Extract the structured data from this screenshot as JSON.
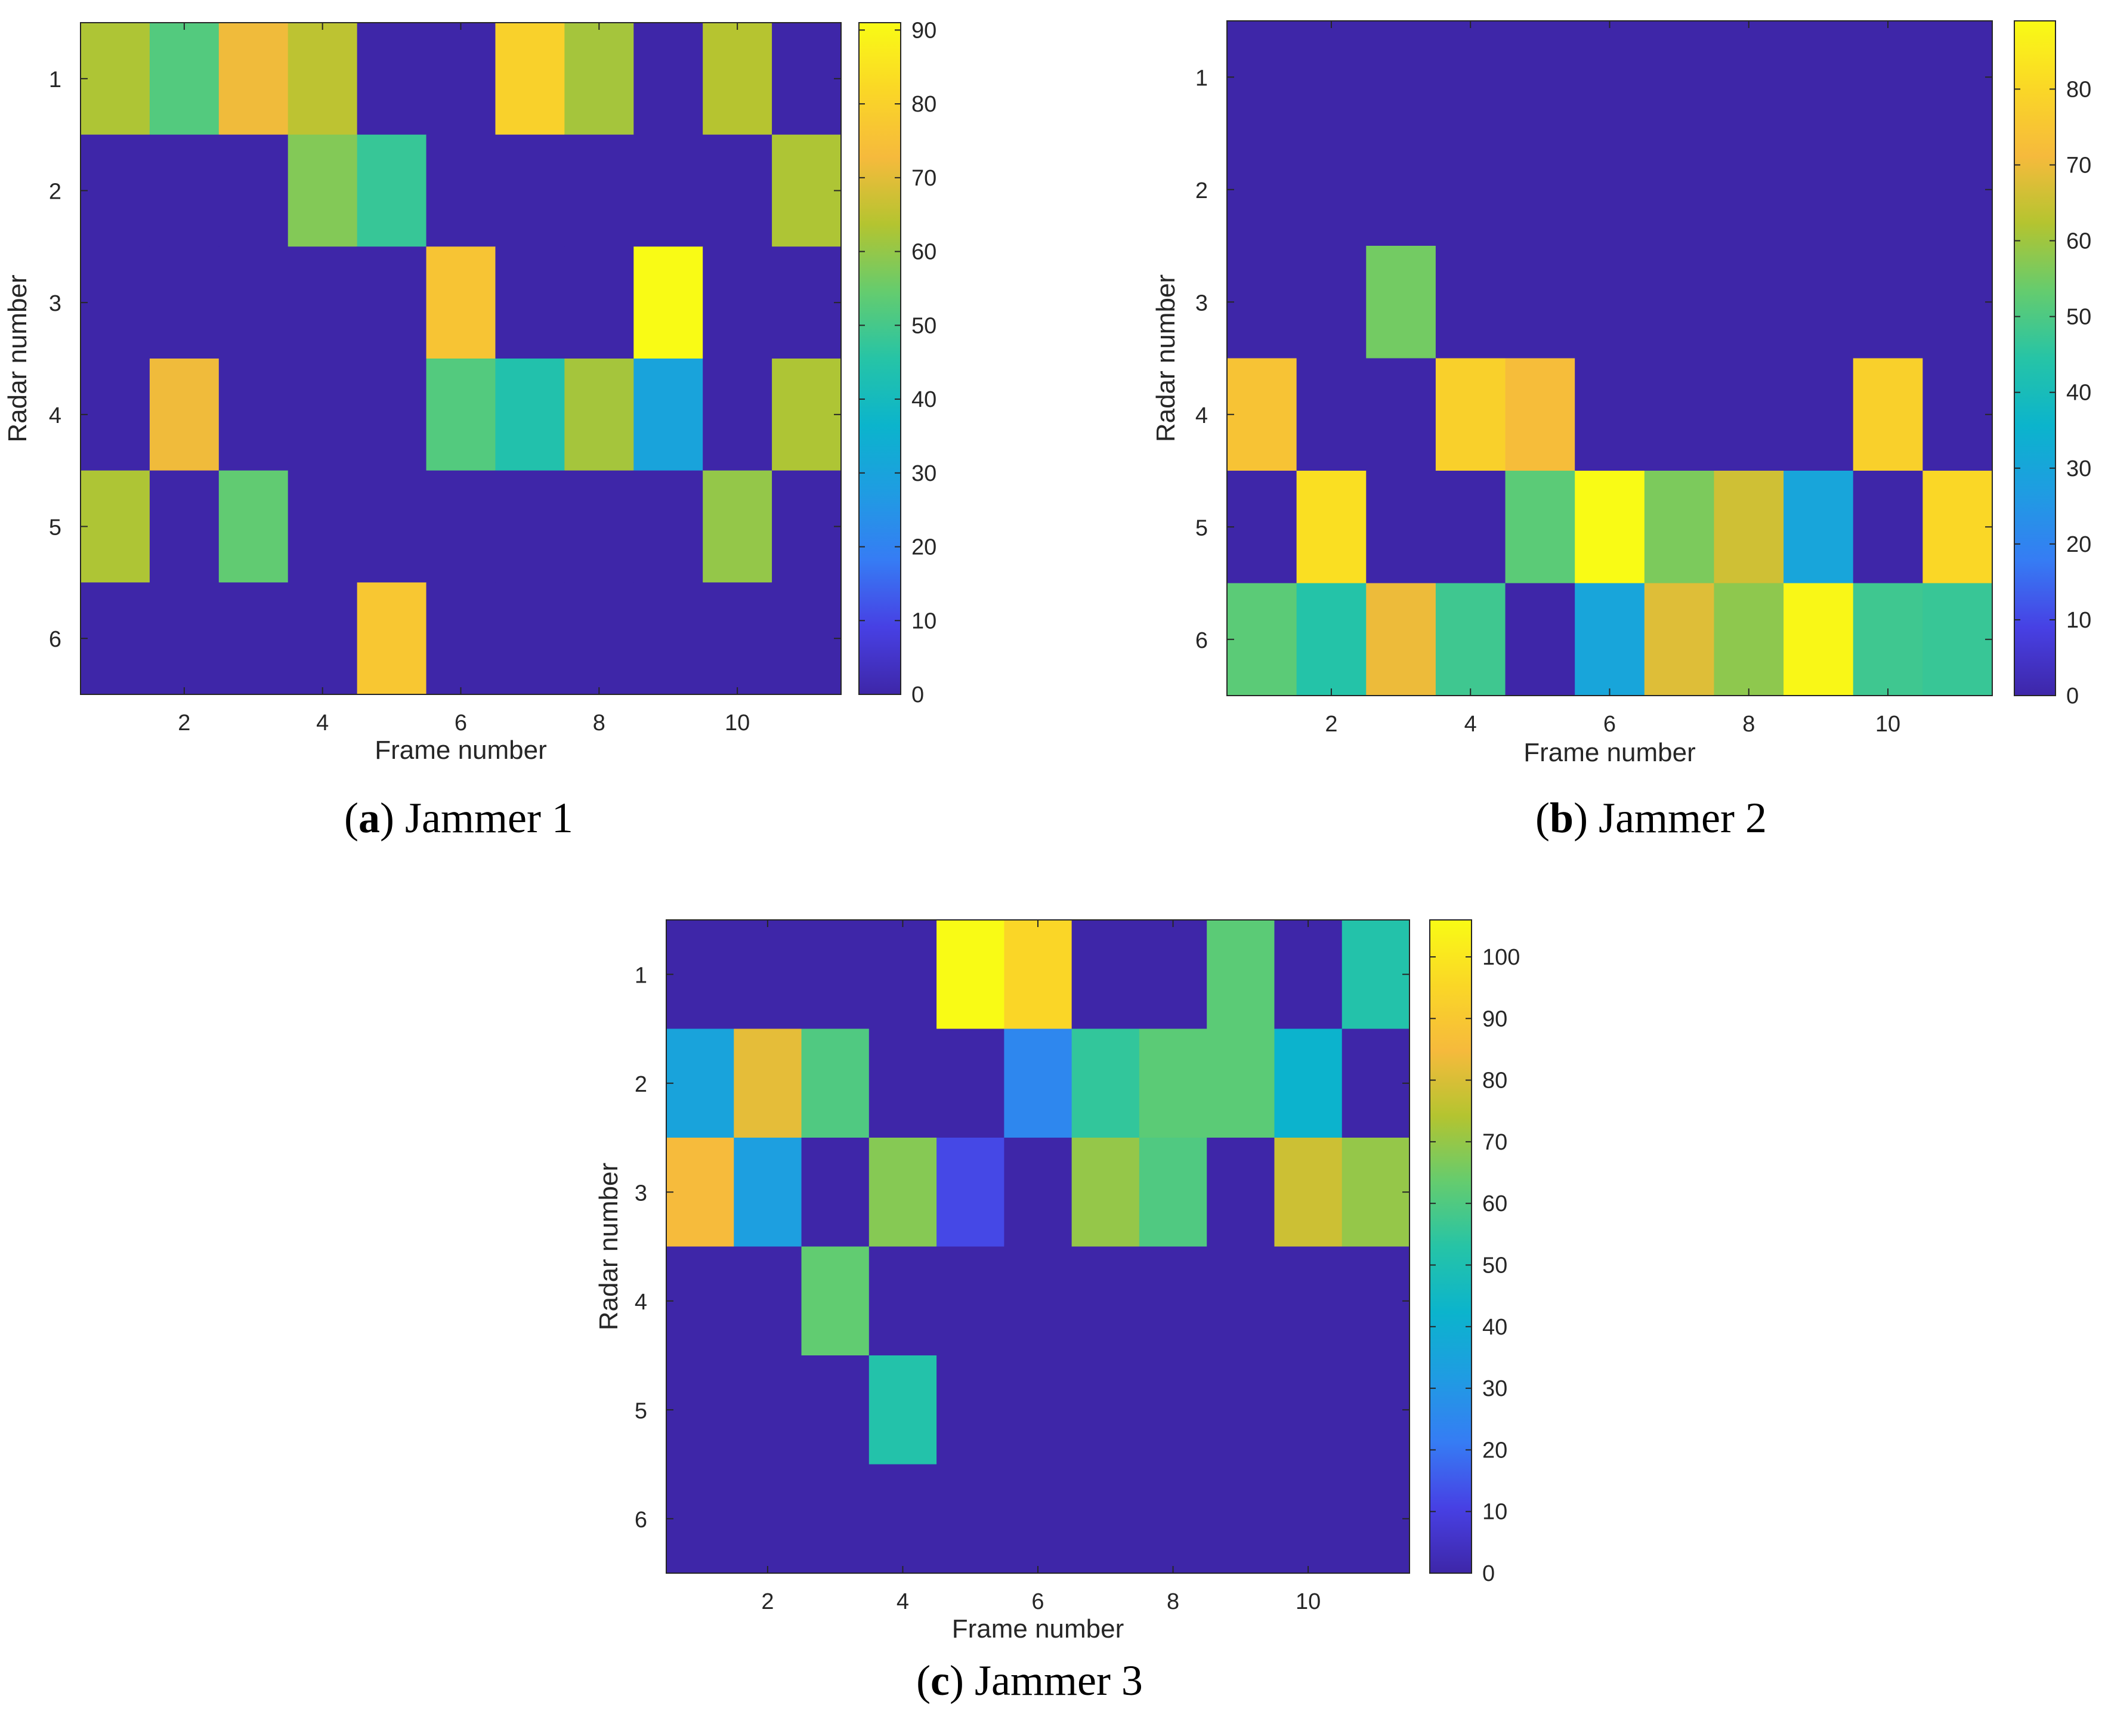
{
  "chart_data": [
    {
      "type": "heatmap",
      "panel_letter": "a",
      "caption": "Jammer 1",
      "xlabel": "Frame number",
      "ylabel": "Radar number",
      "x_ticks": [
        2,
        4,
        6,
        8,
        10
      ],
      "y_ticks": [
        1,
        2,
        3,
        4,
        5,
        6
      ],
      "xlim": [
        0.5,
        11.5
      ],
      "ylim": [
        0.5,
        6.5
      ],
      "colorbar": {
        "min": 0,
        "max": 91,
        "ticks": [
          0,
          10,
          20,
          30,
          40,
          50,
          60,
          70,
          80,
          90
        ]
      },
      "values": [
        [
          63,
          52,
          72,
          65,
          0,
          0,
          80,
          62,
          0,
          64,
          0
        ],
        [
          0,
          0,
          0,
          58,
          48,
          0,
          0,
          0,
          0,
          0,
          63
        ],
        [
          0,
          0,
          0,
          0,
          0,
          76,
          0,
          0,
          91,
          0,
          0
        ],
        [
          0,
          72,
          0,
          0,
          0,
          52,
          44,
          62,
          30,
          0,
          63
        ],
        [
          63,
          0,
          54,
          0,
          0,
          0,
          0,
          0,
          0,
          60,
          0
        ],
        [
          0,
          0,
          0,
          0,
          77,
          0,
          0,
          0,
          0,
          0,
          0
        ]
      ]
    },
    {
      "type": "heatmap",
      "panel_letter": "b",
      "caption": "Jammer 2",
      "xlabel": "Frame number",
      "ylabel": "Radar number",
      "x_ticks": [
        2,
        4,
        6,
        8,
        10
      ],
      "y_ticks": [
        1,
        2,
        3,
        4,
        5,
        6
      ],
      "xlim": [
        0.5,
        11.5
      ],
      "ylim": [
        0.5,
        6.5
      ],
      "colorbar": {
        "min": 0,
        "max": 89,
        "ticks": [
          0,
          10,
          20,
          30,
          40,
          50,
          60,
          70,
          80
        ]
      },
      "values": [
        [
          0,
          0,
          0,
          0,
          0,
          0,
          0,
          0,
          0,
          0,
          0
        ],
        [
          0,
          0,
          0,
          0,
          0,
          0,
          0,
          0,
          0,
          0,
          0
        ],
        [
          0,
          0,
          55,
          0,
          0,
          0,
          0,
          0,
          0,
          0,
          0
        ],
        [
          74,
          0,
          0,
          78,
          72,
          0,
          0,
          0,
          0,
          78,
          0
        ],
        [
          0,
          82,
          0,
          0,
          52,
          89,
          56,
          66,
          30,
          0,
          80
        ],
        [
          52,
          44,
          70,
          48,
          0,
          30,
          68,
          58,
          88,
          48,
          47
        ]
      ]
    },
    {
      "type": "heatmap",
      "panel_letter": "c",
      "caption": "Jammer 3",
      "xlabel": "Frame number",
      "ylabel": "Radar number",
      "x_ticks": [
        2,
        4,
        6,
        8,
        10
      ],
      "y_ticks": [
        1,
        2,
        3,
        4,
        5,
        6
      ],
      "xlim": [
        0.5,
        11.5
      ],
      "ylim": [
        0.5,
        6.5
      ],
      "colorbar": {
        "min": 0,
        "max": 106,
        "ticks": [
          0,
          10,
          20,
          30,
          40,
          50,
          60,
          70,
          80,
          90,
          100
        ]
      },
      "values": [
        [
          0,
          0,
          0,
          0,
          106,
          95,
          0,
          0,
          62,
          0,
          52
        ],
        [
          35,
          82,
          60,
          0,
          0,
          25,
          55,
          62,
          62,
          42,
          0
        ],
        [
          85,
          33,
          0,
          68,
          12,
          0,
          70,
          60,
          0,
          78,
          70
        ],
        [
          0,
          0,
          63,
          0,
          0,
          0,
          0,
          0,
          0,
          0,
          0
        ],
        [
          0,
          0,
          0,
          52,
          0,
          0,
          0,
          0,
          0,
          0,
          0
        ],
        [
          0,
          0,
          0,
          0,
          0,
          0,
          0,
          0,
          0,
          0,
          0
        ]
      ]
    }
  ]
}
